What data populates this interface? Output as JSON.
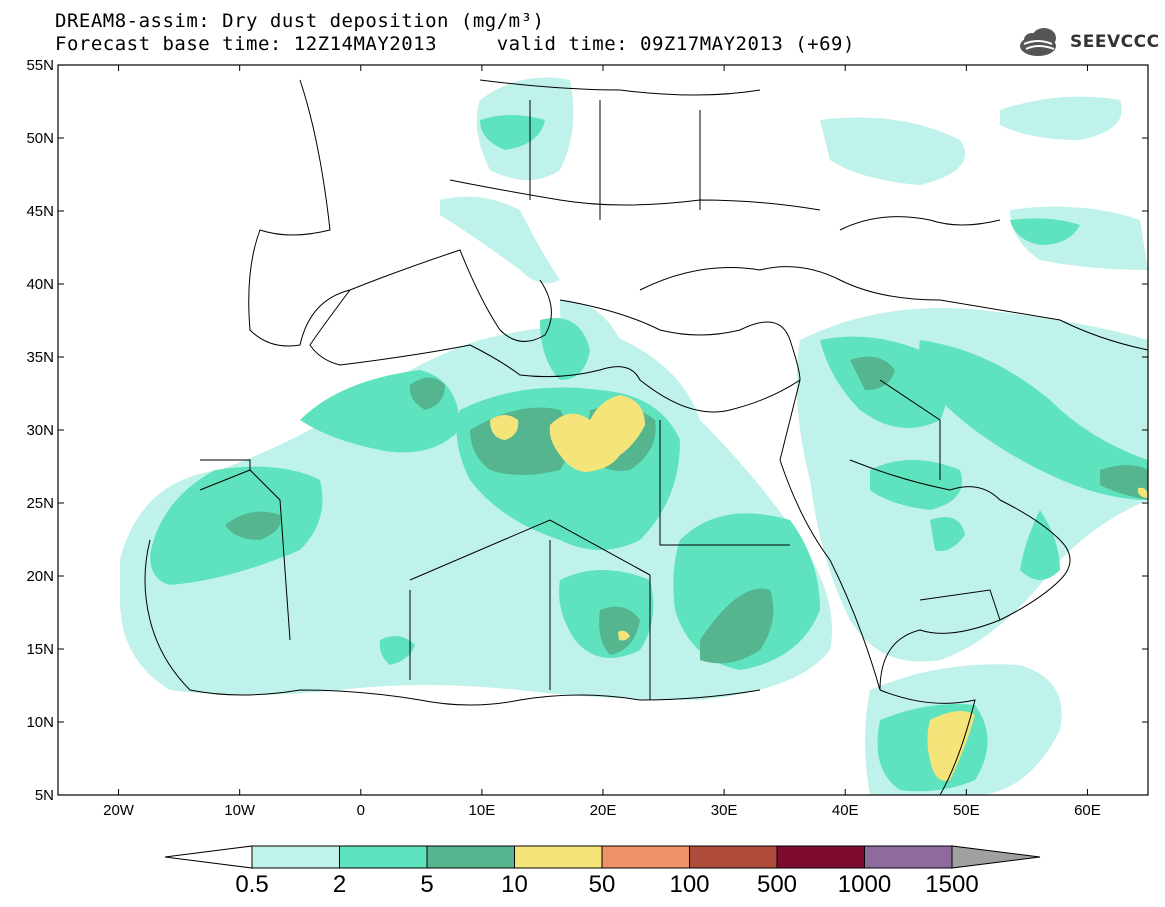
{
  "header": {
    "title_line1": "DREAM8-assim: Dry dust deposition (mg/m³)",
    "title_line2": "Forecast base time: 12Z14MAY2013     valid time: 09Z17MAY2013 (+69)"
  },
  "logo": {
    "text": "SEEVCCC",
    "icon": "cloud-icon"
  },
  "map": {
    "lat_labels": [
      "55N",
      "50N",
      "45N",
      "40N",
      "35N",
      "30N",
      "25N",
      "20N",
      "15N",
      "10N",
      "5N"
    ],
    "lon_labels": [
      "20W",
      "10W",
      "0",
      "10E",
      "20E",
      "30E",
      "40E",
      "50E",
      "60E"
    ]
  },
  "legend": {
    "levels": [
      "0.5",
      "2",
      "5",
      "10",
      "50",
      "100",
      "500",
      "1000",
      "1500"
    ],
    "colors": [
      "#ffffff",
      "#bff2ea",
      "#5ee3be",
      "#54b58f",
      "#f4e47a",
      "#ee926a",
      "#b04c3b",
      "#7d0c2f",
      "#8f6a9e",
      "#a0a0a0"
    ]
  },
  "colors": {
    "bin_0_5_2": "#bff2ea",
    "bin_2_5": "#5ee3be",
    "bin_5_10": "#54b58f",
    "bin_10_50": "#f4e47a"
  }
}
